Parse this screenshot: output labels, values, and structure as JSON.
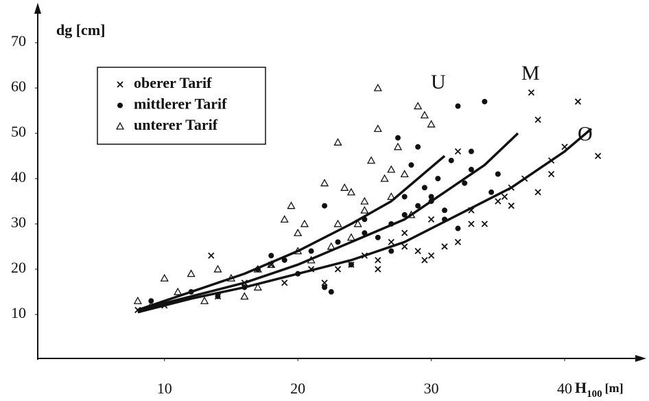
{
  "chart_data": {
    "type": "scatter",
    "y_label": "dg [cm]",
    "x_label": "H",
    "x_label_sub": "100",
    "x_label_unit": "[m]",
    "xlim": [
      0.5,
      45.5
    ],
    "ylim": [
      0,
      77
    ],
    "xticks": [
      10,
      20,
      30,
      40
    ],
    "yticks": [
      10,
      20,
      30,
      40,
      50,
      60,
      70
    ],
    "color": "#111111",
    "series": [
      {
        "name": "oberer Tarif",
        "marker": "cross",
        "x": [
          8,
          10,
          13.5,
          14,
          16,
          18,
          19,
          21,
          22,
          23,
          24,
          25,
          26,
          27,
          28,
          29,
          29.5,
          30,
          31,
          32,
          33,
          34,
          35,
          35.5,
          36,
          37,
          37.5,
          38,
          39,
          40,
          41,
          42.5,
          32,
          33,
          38,
          28,
          30,
          26,
          36,
          39
        ],
        "values": [
          11,
          12,
          23,
          14,
          17,
          21,
          17,
          20,
          17,
          20,
          21,
          23,
          22,
          26,
          25,
          24,
          22,
          23,
          25,
          26,
          33,
          30,
          35,
          36,
          38,
          40,
          59,
          53,
          41,
          47,
          57,
          45,
          46,
          30,
          37,
          28,
          31,
          20,
          34,
          44
        ]
      },
      {
        "name": "mittlerer Tarif",
        "marker": "dot",
        "x": [
          9,
          12,
          14,
          16,
          17,
          18,
          19,
          20,
          21,
          22,
          22.5,
          23,
          24,
          25,
          26,
          27,
          27.5,
          28,
          28.5,
          29,
          29.5,
          30,
          30.5,
          31,
          31.5,
          32,
          32.5,
          33,
          34,
          34.5,
          35,
          32,
          27,
          29,
          22,
          25,
          30,
          28,
          33,
          31
        ],
        "values": [
          13,
          15,
          14,
          16,
          20,
          23,
          22,
          19,
          24,
          16,
          15,
          26,
          21,
          28,
          27,
          30,
          49,
          32,
          43,
          47,
          38,
          36,
          40,
          33,
          44,
          56,
          39,
          42,
          57,
          37,
          41,
          29,
          24,
          34,
          34,
          31,
          35,
          36,
          46,
          31
        ]
      },
      {
        "name": "unterer Tarif",
        "marker": "triangle",
        "x": [
          8,
          9,
          10,
          11,
          12,
          13,
          14,
          15,
          16,
          17,
          18,
          19,
          19.5,
          20,
          20.5,
          21,
          22,
          22.5,
          23,
          23.5,
          24,
          24.5,
          25,
          25.5,
          26,
          26.5,
          27,
          27.5,
          28,
          28.5,
          29,
          29.5,
          30,
          26,
          24,
          20,
          17,
          23,
          27,
          25
        ],
        "values": [
          13,
          12,
          18,
          15,
          19,
          13,
          20,
          18,
          14,
          16,
          21,
          31,
          34,
          28,
          30,
          22,
          39,
          25,
          48,
          38,
          37,
          30,
          33,
          44,
          51,
          40,
          36,
          47,
          41,
          32,
          56,
          54,
          52,
          60,
          27,
          24,
          20,
          30,
          42,
          35
        ]
      }
    ],
    "lines": [
      {
        "name": "U",
        "x": [
          8,
          12,
          16,
          20,
          24,
          27,
          29,
          31
        ],
        "values": [
          11,
          15,
          19,
          24,
          30,
          35,
          40,
          45
        ]
      },
      {
        "name": "M",
        "x": [
          8,
          12,
          16,
          20,
          24,
          28,
          31,
          34,
          36.5
        ],
        "values": [
          11,
          14,
          17,
          21,
          26,
          31,
          37,
          43,
          50
        ]
      },
      {
        "name": "O",
        "x": [
          8,
          12,
          16,
          20,
          24,
          28,
          32,
          36,
          40,
          42
        ],
        "values": [
          10.5,
          13.5,
          16,
          19,
          22,
          26,
          32,
          38,
          46,
          51
        ]
      }
    ]
  }
}
